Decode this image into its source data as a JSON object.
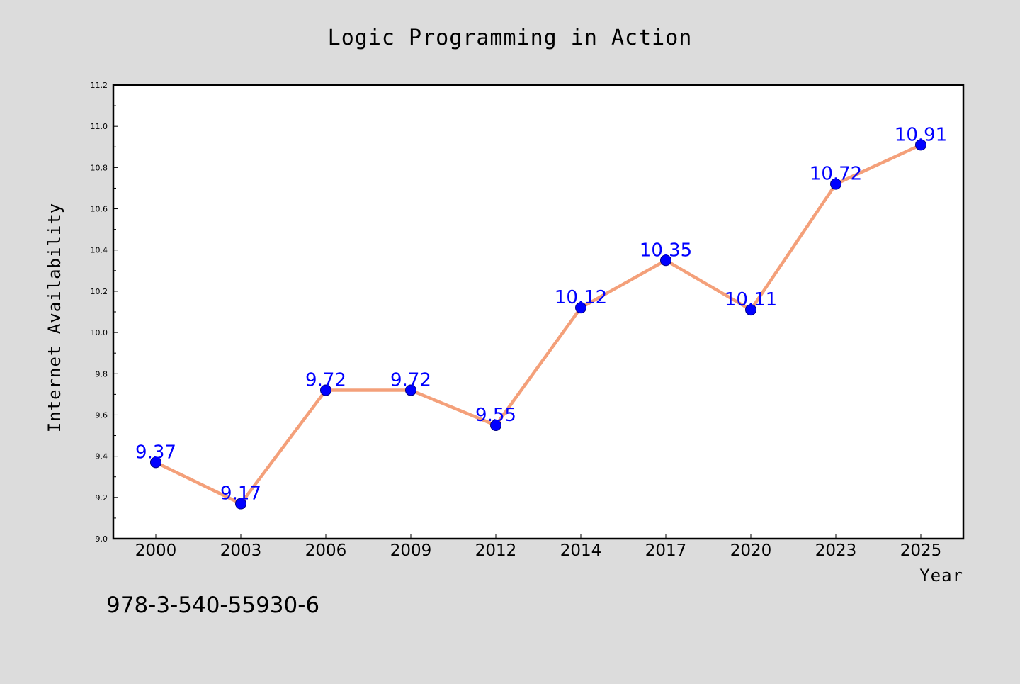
{
  "chart_data": {
    "type": "line",
    "title": "Logic Programming in Action",
    "xlabel": "Year",
    "ylabel": "Internet Availability",
    "categories": [
      "2000",
      "2003",
      "2006",
      "2009",
      "2012",
      "2014",
      "2017",
      "2020",
      "2023",
      "2025"
    ],
    "series": [
      {
        "values": [
          9.37,
          9.17,
          9.72,
          9.72,
          9.55,
          10.12,
          10.35,
          10.11,
          10.72,
          10.91
        ]
      }
    ],
    "value_labels": [
      "9.37",
      "9.17",
      "9.72",
      "9.72",
      "9.55",
      "10.12",
      "10.35",
      "10.11",
      "10.72",
      "10.91"
    ],
    "ylim": [
      9.0,
      11.2
    ],
    "yticks": [
      "9.0",
      "9.2",
      "9.4",
      "9.6",
      "9.8",
      "10.0",
      "10.2",
      "10.4",
      "10.6",
      "10.8",
      "11.0",
      "11.2"
    ],
    "grid": false,
    "legend": "none",
    "annotation": "978-3-540-55930-6",
    "colors": {
      "background": "#dcdcdc",
      "plot_background": "#ffffff",
      "line": "#f4a07a",
      "marker": "#0000ff",
      "marker_edge": "#000080",
      "value_label": "#0000ff"
    }
  }
}
